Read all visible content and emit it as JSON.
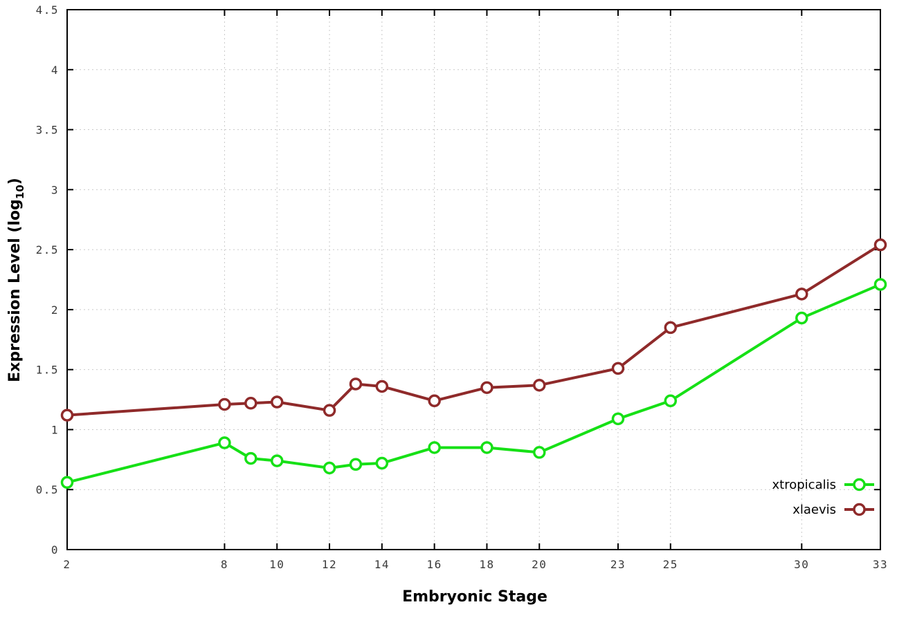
{
  "chart_data": {
    "type": "line",
    "title": "",
    "xlabel": "Embryonic Stage",
    "ylabel_prefix": "Expression Level (log",
    "ylabel_sub": "10",
    "ylabel_suffix": ")",
    "xlim": [
      2,
      33
    ],
    "ylim": [
      0,
      4.5
    ],
    "x_ticks": [
      2,
      8,
      10,
      12,
      14,
      16,
      18,
      20,
      23,
      25,
      30,
      33
    ],
    "y_ticks": [
      0,
      0.5,
      1,
      1.5,
      2,
      2.5,
      3,
      3.5,
      4,
      4.5
    ],
    "grid": true,
    "legend_position": "bottom-right",
    "colors": {
      "xtropicalis": "#16e016",
      "xlaevis": "#8f2a2a",
      "grid": "#c9c9c9",
      "border": "#000000"
    },
    "series": [
      {
        "name": "xtropicalis",
        "color": "#16e016",
        "x": [
          2,
          8,
          9,
          10,
          12,
          13,
          14,
          16,
          18,
          20,
          23,
          25,
          30,
          33
        ],
        "values": [
          0.56,
          0.89,
          0.76,
          0.74,
          0.68,
          0.71,
          0.72,
          0.85,
          0.85,
          0.81,
          1.09,
          1.24,
          1.93,
          2.21
        ]
      },
      {
        "name": "xlaevis",
        "color": "#8f2a2a",
        "x": [
          2,
          8,
          9,
          10,
          12,
          13,
          14,
          16,
          18,
          20,
          23,
          25,
          30,
          33
        ],
        "values": [
          1.12,
          1.21,
          1.22,
          1.23,
          1.16,
          1.38,
          1.36,
          1.24,
          1.35,
          1.37,
          1.51,
          1.85,
          2.13,
          2.54
        ]
      }
    ]
  }
}
